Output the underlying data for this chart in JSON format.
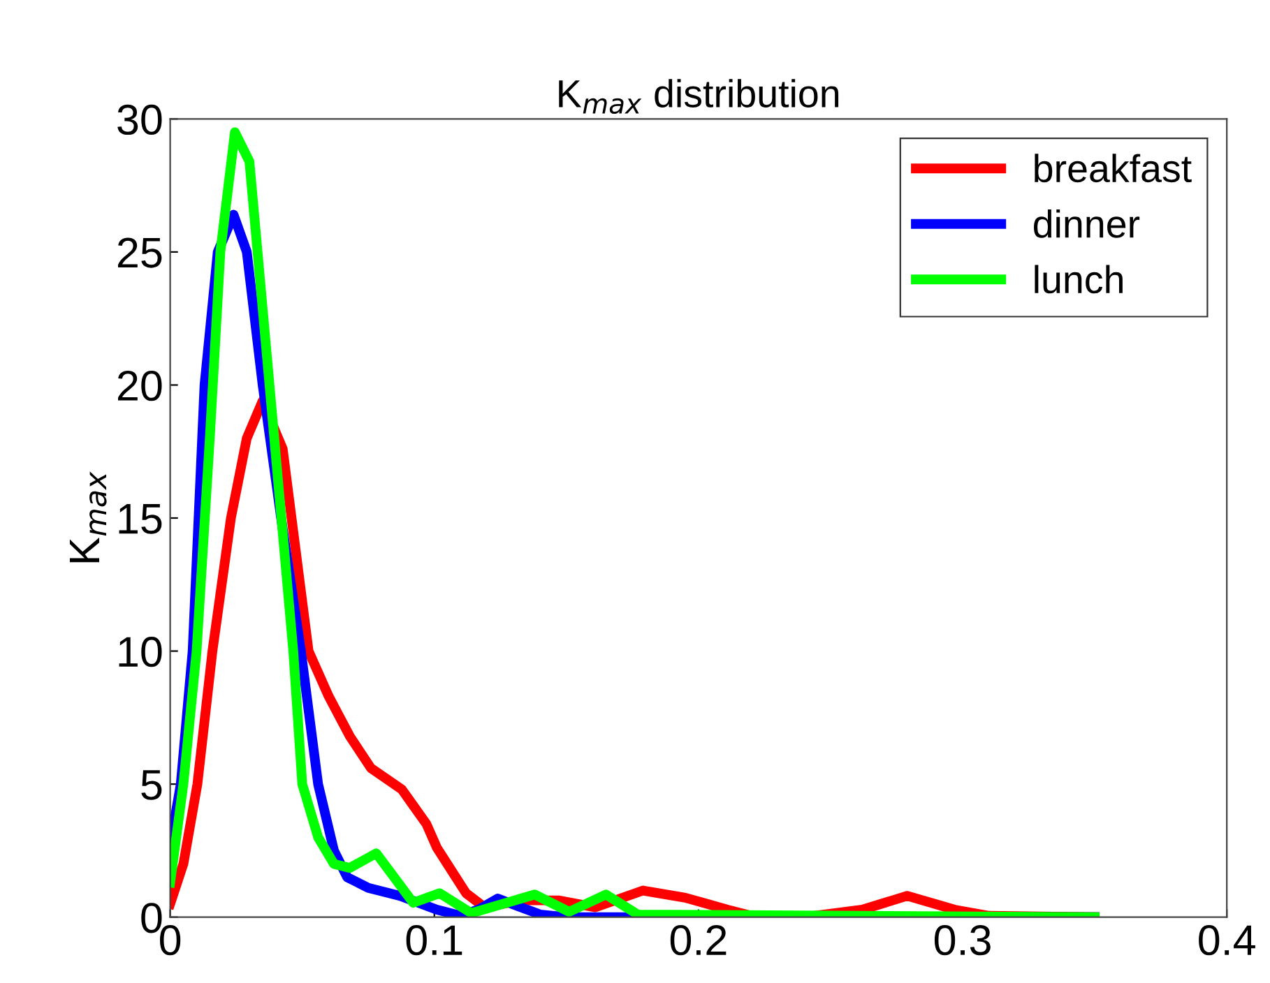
{
  "chart_data": {
    "type": "line",
    "title": "K$_{max}$ distribution",
    "ylabel": "K$_{max}$",
    "xlim": [
      0,
      0.4
    ],
    "xticks": [
      0,
      0.1,
      0.2,
      0.3,
      0.4
    ],
    "ylim": [
      0,
      30
    ],
    "yticks": [
      0,
      5,
      10,
      15,
      20,
      25,
      30
    ],
    "grid": false,
    "legend": "top right",
    "marker": "none",
    "line_style": "solid",
    "series": [
      {
        "name": "breakfast",
        "color": "#ff0000",
        "x": [
          0,
          0.005,
          0.0103,
          0.016,
          0.023,
          0.029,
          0.035,
          0.0426,
          0.0524,
          0.06,
          0.068,
          0.076,
          0.0877,
          0.092,
          0.097,
          0.101,
          0.112,
          0.119,
          0.133,
          0.147,
          0.161,
          0.179,
          0.195,
          0.211,
          0.22,
          0.24,
          0.262,
          0.279,
          0.297,
          0.31,
          0.35
        ],
        "values": [
          0.5,
          2,
          5,
          10,
          15,
          18,
          19.4,
          17.6,
          10,
          8.3,
          6.8,
          5.6,
          4.8,
          4.2,
          3.5,
          2.6,
          0.9,
          0.37,
          0.63,
          0.63,
          0.37,
          1.0,
          0.73,
          0.28,
          0.05,
          0,
          0.28,
          0.8,
          0.28,
          0.05,
          0
        ]
      },
      {
        "name": "dinner",
        "color": "#0000ff",
        "x": [
          0,
          0.004,
          0.0085,
          0.013,
          0.018,
          0.024,
          0.029,
          0.035,
          0.042,
          0.0495,
          0.056,
          0.062,
          0.067,
          0.075,
          0.087,
          0.101,
          0.11,
          0.117,
          0.124,
          0.132,
          0.14,
          0.15,
          0.35
        ],
        "values": [
          2.7,
          5,
          10,
          20,
          25,
          26.4,
          25,
          20,
          15,
          10,
          5,
          2.5,
          1.5,
          1.1,
          0.8,
          0.28,
          0.05,
          0.3,
          0.7,
          0.4,
          0.1,
          0,
          0
        ]
      },
      {
        "name": "lunch",
        "color": "#00ff00",
        "x": [
          0,
          0.005,
          0.01,
          0.015,
          0.019,
          0.0245,
          0.03,
          0.0376,
          0.0466,
          0.05,
          0.056,
          0.062,
          0.068,
          0.078,
          0.092,
          0.102,
          0.114,
          0.138,
          0.151,
          0.165,
          0.177,
          0.35
        ],
        "values": [
          1.3,
          5,
          10,
          18,
          25,
          29.5,
          28.4,
          20,
          10,
          5,
          3,
          2,
          1.85,
          2.4,
          0.54,
          0.9,
          0.15,
          0.85,
          0.2,
          0.85,
          0.1,
          0
        ]
      }
    ]
  }
}
